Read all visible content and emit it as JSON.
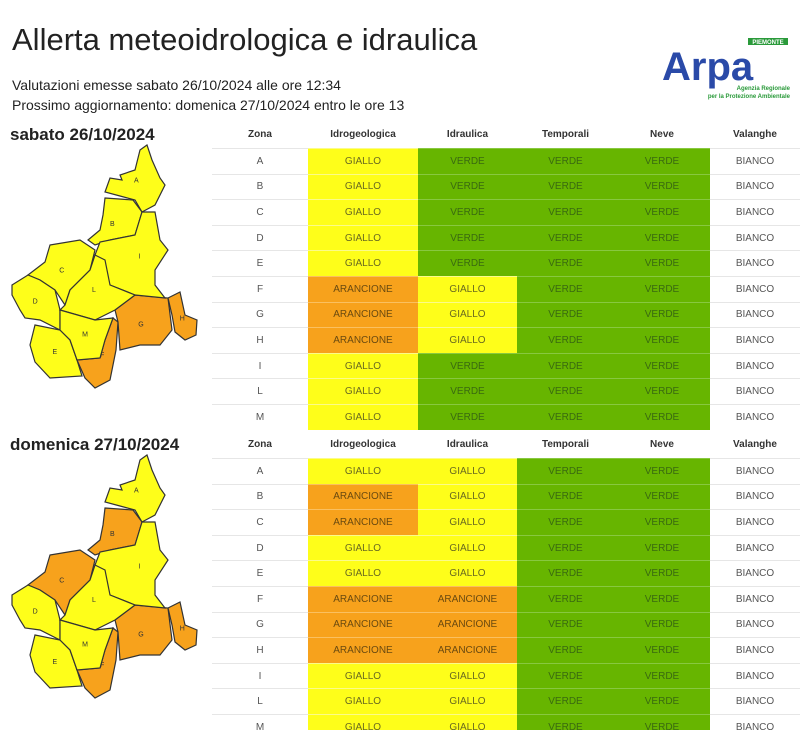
{
  "header": {
    "title": "Allerta meteoidrologica e idraulica",
    "issued": "Valutazioni emesse sabato 26/10/2024 alle ore 12:34",
    "next_update": "Prossimo aggiornamento: domenica 27/10/2024 entro le ore 13",
    "logo": {
      "text": "Arpa",
      "region": "PIEMONTE",
      "tagline1": "Agenzia Regionale",
      "tagline2": "per la Protezione Ambientale"
    }
  },
  "colors": {
    "GIALLO": "#fefe1a",
    "VERDE": "#67b500",
    "ARANCIONE": "#f7a21c",
    "BIANCO": "#ffffff"
  },
  "columns": [
    "Zona",
    "Idrogeologica",
    "Idraulica",
    "Temporali",
    "Neve",
    "Valanghe"
  ],
  "days": [
    {
      "title": "sabato 26/10/2024",
      "rows": [
        [
          "A",
          "GIALLO",
          "VERDE",
          "VERDE",
          "VERDE",
          "BIANCO"
        ],
        [
          "B",
          "GIALLO",
          "VERDE",
          "VERDE",
          "VERDE",
          "BIANCO"
        ],
        [
          "C",
          "GIALLO",
          "VERDE",
          "VERDE",
          "VERDE",
          "BIANCO"
        ],
        [
          "D",
          "GIALLO",
          "VERDE",
          "VERDE",
          "VERDE",
          "BIANCO"
        ],
        [
          "E",
          "GIALLO",
          "VERDE",
          "VERDE",
          "VERDE",
          "BIANCO"
        ],
        [
          "F",
          "ARANCIONE",
          "GIALLO",
          "VERDE",
          "VERDE",
          "BIANCO"
        ],
        [
          "G",
          "ARANCIONE",
          "GIALLO",
          "VERDE",
          "VERDE",
          "BIANCO"
        ],
        [
          "H",
          "ARANCIONE",
          "GIALLO",
          "VERDE",
          "VERDE",
          "BIANCO"
        ],
        [
          "I",
          "GIALLO",
          "VERDE",
          "VERDE",
          "VERDE",
          "BIANCO"
        ],
        [
          "L",
          "GIALLO",
          "VERDE",
          "VERDE",
          "VERDE",
          "BIANCO"
        ],
        [
          "M",
          "GIALLO",
          "VERDE",
          "VERDE",
          "VERDE",
          "BIANCO"
        ]
      ]
    },
    {
      "title": "domenica 27/10/2024",
      "rows": [
        [
          "A",
          "GIALLO",
          "GIALLO",
          "VERDE",
          "VERDE",
          "BIANCO"
        ],
        [
          "B",
          "ARANCIONE",
          "GIALLO",
          "VERDE",
          "VERDE",
          "BIANCO"
        ],
        [
          "C",
          "ARANCIONE",
          "GIALLO",
          "VERDE",
          "VERDE",
          "BIANCO"
        ],
        [
          "D",
          "GIALLO",
          "GIALLO",
          "VERDE",
          "VERDE",
          "BIANCO"
        ],
        [
          "E",
          "GIALLO",
          "GIALLO",
          "VERDE",
          "VERDE",
          "BIANCO"
        ],
        [
          "F",
          "ARANCIONE",
          "ARANCIONE",
          "VERDE",
          "VERDE",
          "BIANCO"
        ],
        [
          "G",
          "ARANCIONE",
          "ARANCIONE",
          "VERDE",
          "VERDE",
          "BIANCO"
        ],
        [
          "H",
          "ARANCIONE",
          "ARANCIONE",
          "VERDE",
          "VERDE",
          "BIANCO"
        ],
        [
          "I",
          "GIALLO",
          "GIALLO",
          "VERDE",
          "VERDE",
          "BIANCO"
        ],
        [
          "L",
          "GIALLO",
          "GIALLO",
          "VERDE",
          "VERDE",
          "BIANCO"
        ],
        [
          "M",
          "GIALLO",
          "GIALLO",
          "VERDE",
          "VERDE",
          "BIANCO"
        ]
      ]
    }
  ]
}
